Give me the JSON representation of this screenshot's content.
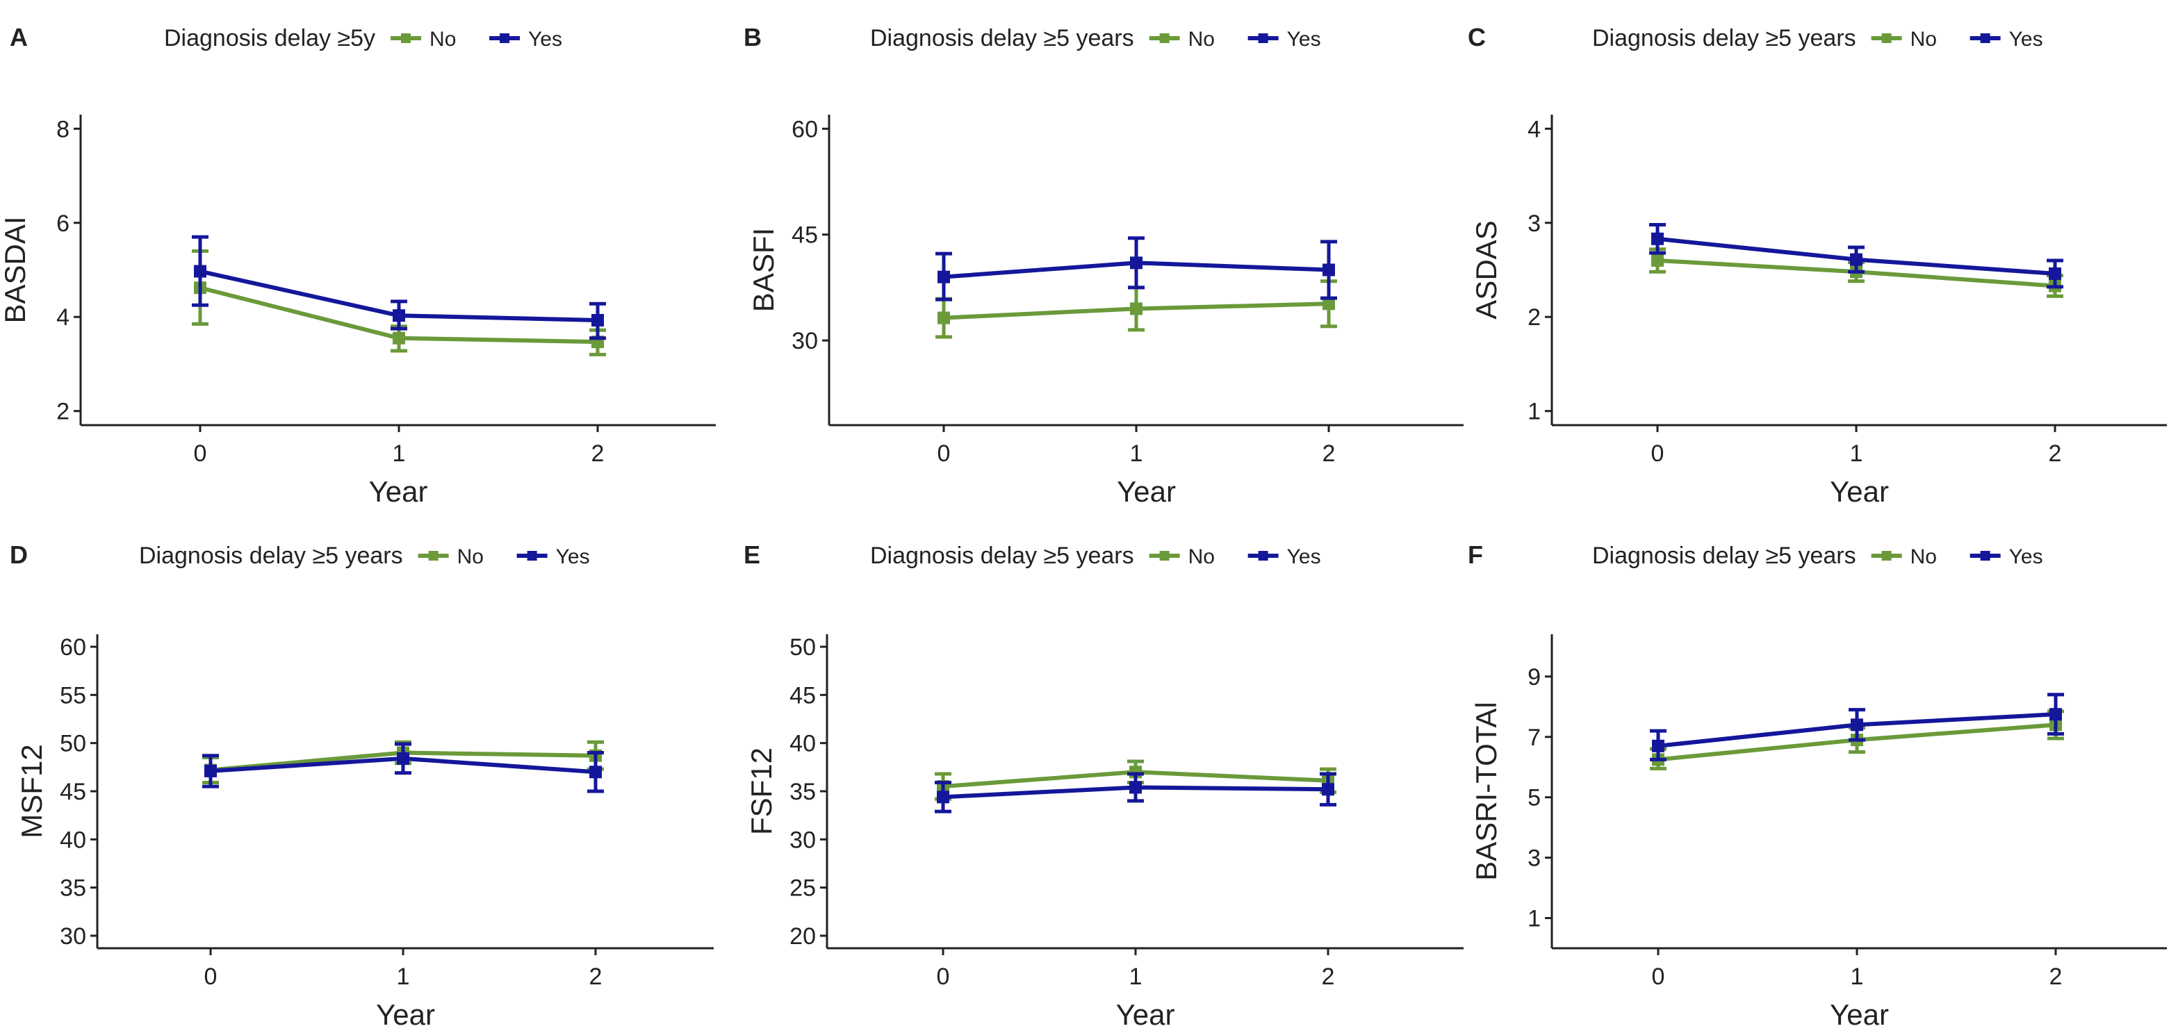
{
  "colors": {
    "no": "#6a9a3a",
    "yes": "#14179a",
    "axis": "#222222",
    "text": "#222222"
  },
  "chart_data": [
    {
      "panel": "A",
      "type": "line",
      "legend_title": "Diagnosis delay ≥5y",
      "x": [
        0,
        1,
        2
      ],
      "xlabel": "Year",
      "ylabel": "BASDAI",
      "ylim": [
        1.7,
        8.3
      ],
      "yticks": [
        2,
        4,
        6,
        8
      ],
      "legend": "top",
      "series": [
        {
          "name": "No",
          "values": [
            4.62,
            3.55,
            3.47
          ],
          "ci_low": [
            3.85,
            3.28,
            3.2
          ],
          "ci_high": [
            5.4,
            3.8,
            3.72
          ]
        },
        {
          "name": "Yes",
          "values": [
            4.97,
            4.03,
            3.93
          ],
          "ci_low": [
            4.25,
            3.75,
            3.55
          ],
          "ci_high": [
            5.7,
            4.33,
            4.28
          ]
        }
      ]
    },
    {
      "panel": "B",
      "type": "line",
      "legend_title": "Diagnosis delay ≥5 years",
      "x": [
        0,
        1,
        2
      ],
      "xlabel": "Year",
      "ylabel": "BASFI",
      "ylim": [
        18,
        62
      ],
      "yticks": [
        30,
        45,
        60
      ],
      "legend": "top",
      "series": [
        {
          "name": "No",
          "values": [
            33.2,
            34.5,
            35.2
          ],
          "ci_low": [
            30.5,
            31.5,
            32.0
          ],
          "ci_high": [
            35.9,
            37.5,
            38.4
          ]
        },
        {
          "name": "Yes",
          "values": [
            39.0,
            41.0,
            40.0
          ],
          "ci_low": [
            35.8,
            37.5,
            36.0
          ],
          "ci_high": [
            42.3,
            44.5,
            44.0
          ]
        }
      ]
    },
    {
      "panel": "C",
      "type": "line",
      "legend_title": "Diagnosis delay ≥5 years",
      "x": [
        0,
        1,
        2
      ],
      "xlabel": "Year",
      "ylabel": "ASDAS",
      "ylim": [
        0.85,
        4.15
      ],
      "yticks": [
        1,
        2,
        3,
        4
      ],
      "legend": "top",
      "series": [
        {
          "name": "No",
          "values": [
            2.6,
            2.48,
            2.33
          ],
          "ci_low": [
            2.48,
            2.38,
            2.22
          ],
          "ci_high": [
            2.72,
            2.58,
            2.44
          ]
        },
        {
          "name": "Yes",
          "values": [
            2.83,
            2.61,
            2.46
          ],
          "ci_low": [
            2.68,
            2.48,
            2.32
          ],
          "ci_high": [
            2.98,
            2.74,
            2.6
          ]
        }
      ]
    },
    {
      "panel": "D",
      "type": "line",
      "legend_title": "Diagnosis delay ≥5 years",
      "x": [
        0,
        1,
        2
      ],
      "xlabel": "Year",
      "ylabel": "MSF12",
      "ylim": [
        28.7,
        61.3
      ],
      "yticks": [
        30,
        35,
        40,
        45,
        50,
        55,
        60
      ],
      "legend": "top",
      "series": [
        {
          "name": "No",
          "values": [
            47.2,
            49.0,
            48.7
          ],
          "ci_low": [
            45.9,
            47.9,
            47.3
          ],
          "ci_high": [
            48.5,
            50.1,
            50.1
          ]
        },
        {
          "name": "Yes",
          "values": [
            47.1,
            48.4,
            47.0
          ],
          "ci_low": [
            45.5,
            46.9,
            45.0
          ],
          "ci_high": [
            48.7,
            49.9,
            49.0
          ]
        }
      ]
    },
    {
      "panel": "E",
      "type": "line",
      "legend_title": "Diagnosis delay ≥5 years",
      "x": [
        0,
        1,
        2
      ],
      "xlabel": "Year",
      "ylabel": "FSF12",
      "ylim": [
        18.7,
        51.3
      ],
      "yticks": [
        20,
        25,
        30,
        35,
        40,
        45,
        50
      ],
      "legend": "top",
      "series": [
        {
          "name": "No",
          "values": [
            35.5,
            37.0,
            36.1
          ],
          "ci_low": [
            34.2,
            35.9,
            34.9
          ],
          "ci_high": [
            36.8,
            38.1,
            37.3
          ]
        },
        {
          "name": "Yes",
          "values": [
            34.4,
            35.4,
            35.2
          ],
          "ci_low": [
            32.9,
            34.0,
            33.6
          ],
          "ci_high": [
            35.9,
            36.8,
            36.8
          ]
        }
      ]
    },
    {
      "panel": "F",
      "type": "line",
      "legend_title": "Diagnosis delay ≥5 years",
      "x": [
        0,
        1,
        2
      ],
      "xlabel": "Year",
      "ylabel": "BASRI-TOTAl",
      "ylim": [
        0.0,
        10.4
      ],
      "yticks": [
        1,
        3,
        5,
        7,
        9
      ],
      "legend": "top",
      "series": [
        {
          "name": "No",
          "values": [
            6.25,
            6.9,
            7.4
          ],
          "ci_low": [
            5.95,
            6.5,
            6.95
          ],
          "ci_high": [
            6.6,
            7.3,
            7.85
          ]
        },
        {
          "name": "Yes",
          "values": [
            6.7,
            7.4,
            7.75
          ],
          "ci_low": [
            6.25,
            6.9,
            7.1
          ],
          "ci_high": [
            7.2,
            7.9,
            8.4
          ]
        }
      ]
    }
  ]
}
